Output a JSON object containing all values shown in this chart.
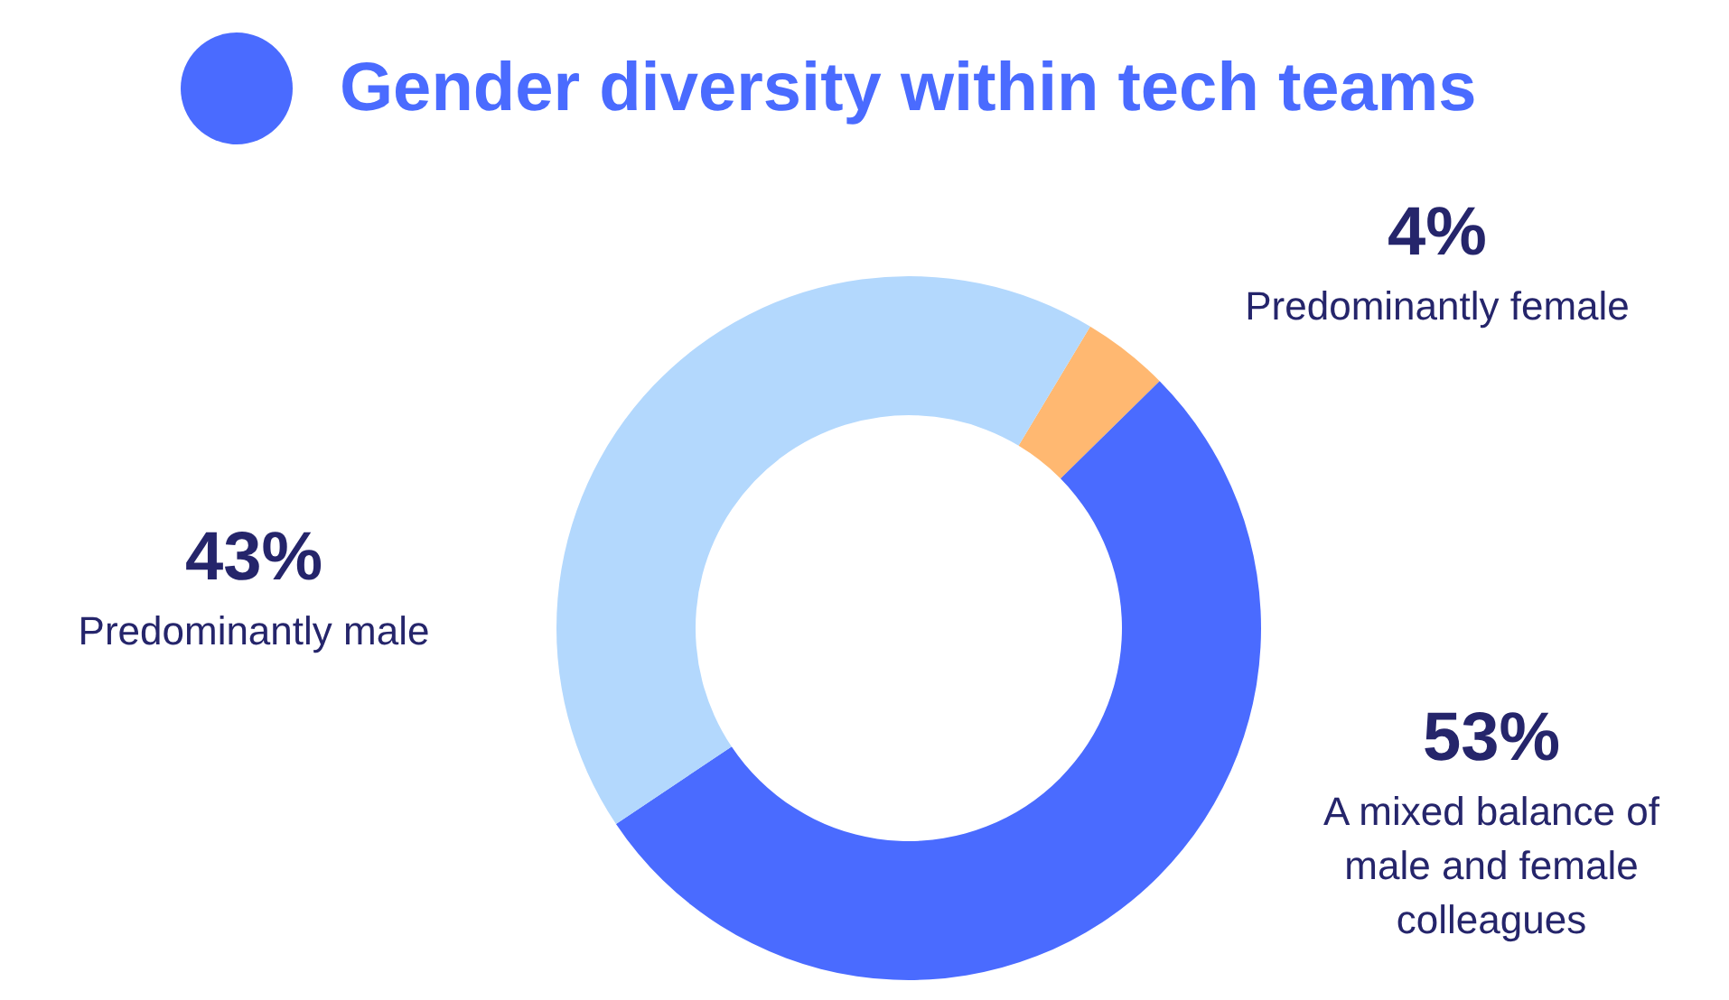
{
  "chart_data": {
    "type": "donut",
    "title": "Gender diversity within tech teams",
    "categories": [
      "Predominantly female",
      "A mixed balance of male and female colleagues",
      "Predominantly male"
    ],
    "values": [
      4,
      53,
      43
    ],
    "value_labels": [
      "4%",
      "53%",
      "43%"
    ],
    "colors": [
      "#ffb871",
      "#4a6bff",
      "#b3d8fd"
    ]
  }
}
